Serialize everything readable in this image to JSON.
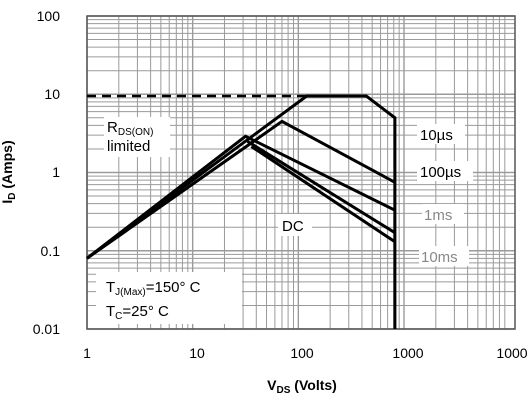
{
  "chart_data": {
    "type": "line",
    "xlabel": {
      "main": "V",
      "sub": "DS",
      "rest": " (Volts)"
    },
    "ylabel": {
      "main": "I",
      "sub": "D",
      "rest": " (Amps)"
    },
    "xscale": "log",
    "yscale": "log",
    "xlim": [
      1,
      1000
    ],
    "ylim": [
      0.01,
      100
    ],
    "x_ticks": [
      "1",
      "10",
      "100",
      "1000",
      "1000"
    ],
    "y_ticks": [
      "100",
      "10",
      "1",
      "0.1",
      "0.01"
    ],
    "grid": true,
    "annotations": {
      "rds_line1_main": "R",
      "rds_line1_sub": "DS(ON)",
      "rds_line2": "limited",
      "t10us": "10µs",
      "t100us": "100µs",
      "t1ms": "1ms",
      "t10ms": "10ms",
      "dc": "DC",
      "tj_main": "T",
      "tj_sub": "J(Max)",
      "tj_rest": "=150° C",
      "tc_main": "T",
      "tc_sub": "C",
      "tc_rest": "=25° C"
    },
    "series": [
      {
        "name": "10µs",
        "x": [
          1,
          120,
          440,
          820,
          820
        ],
        "y": [
          0.08,
          9.5,
          9.5,
          5,
          0.01
        ]
      },
      {
        "name": "100µs",
        "x": [
          1,
          70,
          820
        ],
        "y": [
          0.08,
          4.5,
          0.75
        ]
      },
      {
        "name": "1ms",
        "x": [
          1,
          31.6,
          820
        ],
        "y": [
          0.08,
          2.9,
          0.33
        ]
      },
      {
        "name": "10ms",
        "x": [
          33,
          820
        ],
        "y": [
          2.5,
          0.17
        ]
      },
      {
        "name": "DC",
        "x": [
          36,
          820
        ],
        "y": [
          2.15,
          0.13
        ]
      }
    ],
    "rds_limit": {
      "x": [
        1,
        120
      ],
      "y": [
        9.5,
        9.5
      ]
    }
  }
}
